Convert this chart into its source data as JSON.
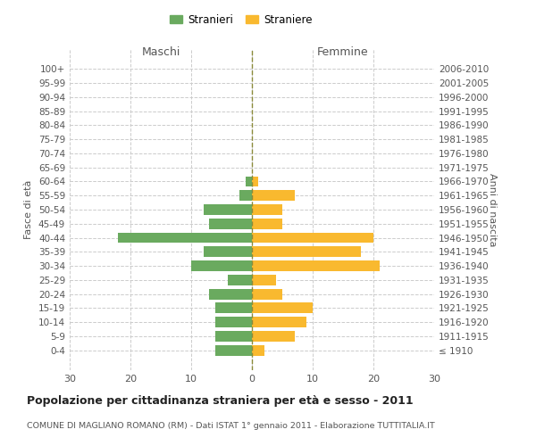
{
  "age_groups": [
    "100+",
    "95-99",
    "90-94",
    "85-89",
    "80-84",
    "75-79",
    "70-74",
    "65-69",
    "60-64",
    "55-59",
    "50-54",
    "45-49",
    "40-44",
    "35-39",
    "30-34",
    "25-29",
    "20-24",
    "15-19",
    "10-14",
    "5-9",
    "0-4"
  ],
  "birth_years": [
    "≤ 1910",
    "1911-1915",
    "1916-1920",
    "1921-1925",
    "1926-1930",
    "1931-1935",
    "1936-1940",
    "1941-1945",
    "1946-1950",
    "1951-1955",
    "1956-1960",
    "1961-1965",
    "1966-1970",
    "1971-1975",
    "1976-1980",
    "1981-1985",
    "1986-1990",
    "1991-1995",
    "1996-2000",
    "2001-2005",
    "2006-2010"
  ],
  "males": [
    0,
    0,
    0,
    0,
    0,
    0,
    0,
    0,
    1,
    2,
    8,
    7,
    22,
    8,
    10,
    4,
    7,
    6,
    6,
    6,
    6
  ],
  "females": [
    0,
    0,
    0,
    0,
    0,
    0,
    0,
    0,
    1,
    7,
    5,
    5,
    20,
    18,
    21,
    4,
    5,
    10,
    9,
    7,
    2
  ],
  "male_color": "#6aaa5f",
  "female_color": "#f9b92f",
  "center_line_color": "#8a8a3a",
  "title": "Popolazione per cittadinanza straniera per età e sesso - 2011",
  "subtitle": "COMUNE DI MAGLIANO ROMANO (RM) - Dati ISTAT 1° gennaio 2011 - Elaborazione TUTTITALIA.IT",
  "legend_male": "Stranieri",
  "legend_female": "Straniere",
  "xlabel_left": "Maschi",
  "xlabel_right": "Femmine",
  "ylabel_left": "Fasce di età",
  "ylabel_right": "Anni di nascita",
  "xlim": 30,
  "background_color": "#ffffff",
  "grid_color": "#cccccc"
}
